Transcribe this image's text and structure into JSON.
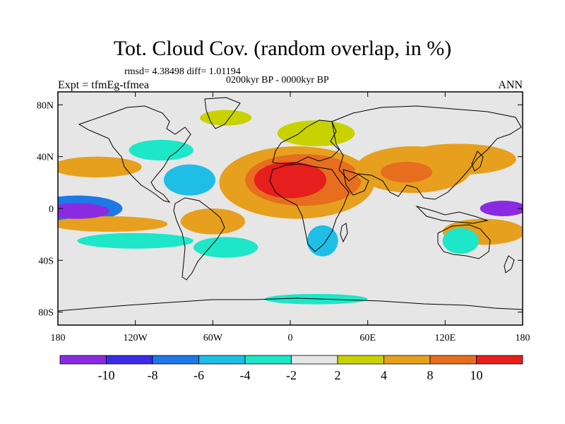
{
  "title": "Tot. Cloud Cov. (random overlap, in %)",
  "stats": "rmsd= 4.38498 diff= 1.01194",
  "subtitle": "0200kyr BP - 0000kyr BP",
  "left_label": "Expt = tfmEg-tfmea",
  "right_label": "ANN",
  "map": {
    "lon_range": [
      -180,
      180
    ],
    "lat_range": [
      -90,
      90
    ],
    "lat_ticks": [
      {
        "lat": 80,
        "label": "80N"
      },
      {
        "lat": 40,
        "label": "40N"
      },
      {
        "lat": 0,
        "label": "0"
      },
      {
        "lat": -40,
        "label": "40S"
      },
      {
        "lat": -80,
        "label": "80S"
      }
    ],
    "lon_ticks": [
      {
        "lon": -180,
        "label": "180"
      },
      {
        "lon": -120,
        "label": "120W"
      },
      {
        "lon": -60,
        "label": "60W"
      },
      {
        "lon": 0,
        "label": "0"
      },
      {
        "lon": 60,
        "label": "60E"
      },
      {
        "lon": 120,
        "label": "120E"
      },
      {
        "lon": 180,
        "label": "180"
      }
    ],
    "background_color": "#e6e6e6",
    "anomaly_fields": [
      {
        "lon": 0,
        "lat": 22,
        "rx": 28,
        "ry": 14,
        "class": "10+"
      },
      {
        "lon": 10,
        "lat": 22,
        "rx": 45,
        "ry": 20,
        "class": "8-10"
      },
      {
        "lon": 5,
        "lat": 20,
        "rx": 60,
        "ry": 28,
        "class": "4-8"
      },
      {
        "lon": 95,
        "lat": 30,
        "rx": 45,
        "ry": 18,
        "class": "4-8"
      },
      {
        "lon": 90,
        "lat": 28,
        "rx": 20,
        "ry": 8,
        "class": "8-10"
      },
      {
        "lon": 130,
        "lat": 38,
        "rx": 45,
        "ry": 12,
        "class": "4-8"
      },
      {
        "lon": -150,
        "lat": 32,
        "rx": 35,
        "ry": 8,
        "class": "4-8"
      },
      {
        "lon": 20,
        "lat": 58,
        "rx": 30,
        "ry": 10,
        "class": "2-4"
      },
      {
        "lon": -165,
        "lat": -2,
        "rx": 25,
        "ry": 6,
        "class": "<-10"
      },
      {
        "lon": -165,
        "lat": 0,
        "rx": 35,
        "ry": 10,
        "class": "-8--6"
      },
      {
        "lon": -140,
        "lat": -12,
        "rx": 45,
        "ry": 6,
        "class": "4-8"
      },
      {
        "lon": -120,
        "lat": -25,
        "rx": 45,
        "ry": 6,
        "class": "-4--2"
      },
      {
        "lon": 165,
        "lat": 0,
        "rx": 18,
        "ry": 6,
        "class": "<-10"
      },
      {
        "lon": 150,
        "lat": -18,
        "rx": 32,
        "ry": 10,
        "class": "4-8"
      },
      {
        "lon": 132,
        "lat": -25,
        "rx": 14,
        "ry": 10,
        "class": "-4--2"
      },
      {
        "lon": 25,
        "lat": -25,
        "rx": 12,
        "ry": 12,
        "class": "-6--4"
      },
      {
        "lon": -78,
        "lat": 22,
        "rx": 20,
        "ry": 12,
        "class": "-6--4"
      },
      {
        "lon": -60,
        "lat": -10,
        "rx": 25,
        "ry": 10,
        "class": "4-8"
      },
      {
        "lon": -50,
        "lat": -30,
        "rx": 25,
        "ry": 8,
        "class": "-4--2"
      },
      {
        "lon": 20,
        "lat": -70,
        "rx": 40,
        "ry": 4,
        "class": "-4--2"
      },
      {
        "lon": -50,
        "lat": 70,
        "rx": 20,
        "ry": 6,
        "class": "2-4"
      },
      {
        "lon": -100,
        "lat": 45,
        "rx": 25,
        "ry": 8,
        "class": "-4--2"
      }
    ]
  },
  "colorbar": {
    "colors": [
      "#8a2be2",
      "#3c2ae6",
      "#1e78e6",
      "#1ebee6",
      "#1ee6c8",
      "#e6e6e6",
      "#c8d200",
      "#e6a01e",
      "#e66e1e",
      "#e61e1e"
    ],
    "labels": [
      "-10",
      "-8",
      "-6",
      "-4",
      "-2",
      "2",
      "4",
      "8",
      "10"
    ]
  }
}
